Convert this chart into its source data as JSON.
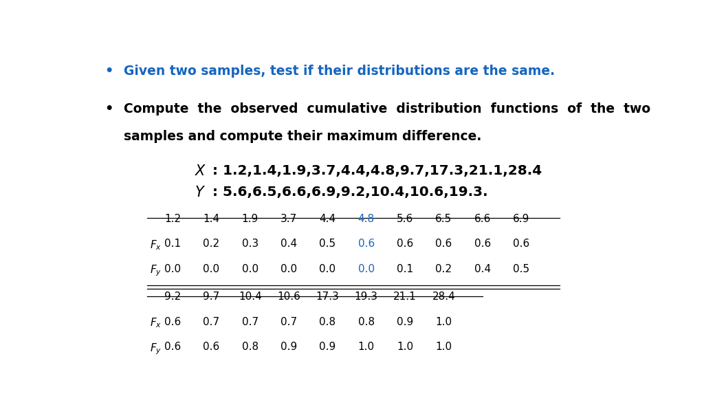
{
  "background_color": "#ffffff",
  "blue_color": "#1565C0",
  "black_color": "#000000",
  "bullet1": "Given two samples, test if their distributions are the same.",
  "bullet2_line1": "Compute  the  observed  cumulative  distribution  functions  of  the  two",
  "bullet2_line2": "samples and compute their maximum difference.",
  "X_line": ": 1.2,1.4,1.9,3.7,4.4,4.8,9.7,17.3,21.1,28.4",
  "Y_line": ": 5.6,6.5,6.6,6.9,9.2,10.4,10.6,19.3.",
  "table1_headers": [
    "1.2",
    "1.4",
    "1.9",
    "3.7",
    "4.4",
    "4.8",
    "5.6",
    "6.5",
    "6.6",
    "6.9"
  ],
  "table1_Fx": [
    "0.1",
    "0.2",
    "0.3",
    "0.4",
    "0.5",
    "0.6",
    "0.6",
    "0.6",
    "0.6",
    "0.6"
  ],
  "table1_Fy": [
    "0.0",
    "0.0",
    "0.0",
    "0.0",
    "0.0",
    "0.0",
    "0.1",
    "0.2",
    "0.4",
    "0.5"
  ],
  "table1_blue_col": 5,
  "table2_headers": [
    "9.2",
    "9.7",
    "10.4",
    "10.6",
    "17.3",
    "19.3",
    "21.1",
    "28.4"
  ],
  "table2_Fx": [
    "0.6",
    "0.7",
    "0.7",
    "0.7",
    "0.8",
    "0.8",
    "0.9",
    "1.0"
  ],
  "table2_Fy": [
    "0.6",
    "0.6",
    "0.8",
    "0.9",
    "0.9",
    "1.0",
    "1.0",
    "1.0"
  ]
}
